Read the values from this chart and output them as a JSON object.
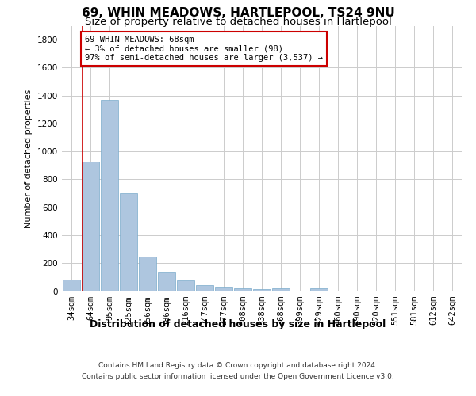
{
  "title1": "69, WHIN MEADOWS, HARTLEPOOL, TS24 9NU",
  "title2": "Size of property relative to detached houses in Hartlepool",
  "xlabel": "Distribution of detached houses by size in Hartlepool",
  "ylabel": "Number of detached properties",
  "categories": [
    "34sqm",
    "64sqm",
    "95sqm",
    "125sqm",
    "156sqm",
    "186sqm",
    "216sqm",
    "247sqm",
    "277sqm",
    "308sqm",
    "338sqm",
    "368sqm",
    "399sqm",
    "429sqm",
    "460sqm",
    "490sqm",
    "520sqm",
    "551sqm",
    "581sqm",
    "612sqm",
    "642sqm"
  ],
  "values": [
    80,
    930,
    1370,
    700,
    245,
    135,
    75,
    45,
    25,
    20,
    15,
    20,
    0,
    20,
    0,
    0,
    0,
    0,
    0,
    0,
    0
  ],
  "bar_color": "#aec6df",
  "bar_edge_color": "#7aaacb",
  "highlight_color": "#cc0000",
  "red_line_x": 0.575,
  "annotation_text": "69 WHIN MEADOWS: 68sqm\n← 3% of detached houses are smaller (98)\n97% of semi-detached houses are larger (3,537) →",
  "annotation_box_color": "#ffffff",
  "annotation_box_edge_color": "#cc0000",
  "ylim": [
    0,
    1900
  ],
  "yticks": [
    0,
    200,
    400,
    600,
    800,
    1000,
    1200,
    1400,
    1600,
    1800
  ],
  "footer_line1": "Contains HM Land Registry data © Crown copyright and database right 2024.",
  "footer_line2": "Contains public sector information licensed under the Open Government Licence v3.0.",
  "bg_color": "#ffffff",
  "grid_color": "#cccccc",
  "title1_fontsize": 11,
  "title2_fontsize": 9.5,
  "xlabel_fontsize": 9,
  "ylabel_fontsize": 8,
  "tick_fontsize": 7.5,
  "annotation_fontsize": 7.5,
  "footer_fontsize": 6.5
}
